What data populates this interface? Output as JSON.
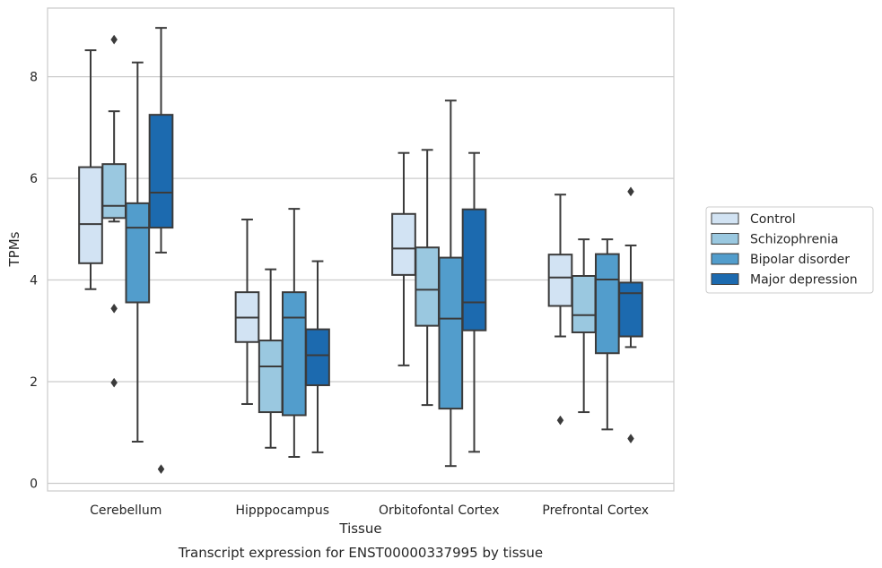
{
  "chart_data": {
    "type": "box",
    "title": "",
    "caption": "Transcript expression for ENST00000337995 by tissue",
    "xlabel": "Tissue",
    "ylabel": "TPMs",
    "ylim": [
      -0.15,
      9.35
    ],
    "yticks": [
      0,
      2,
      4,
      6,
      8
    ],
    "grid": "horizontal",
    "legend_position": "right",
    "categories": [
      "Cerebellum",
      "Hipppocampus",
      "Orbitofontal Cortex",
      "Prefrontal Cortex"
    ],
    "series": [
      {
        "name": "Control",
        "color": "#d2e3f3",
        "boxes": [
          {
            "whislo": 3.82,
            "q1": 4.33,
            "med": 5.1,
            "q3": 6.22,
            "whishi": 8.52,
            "fliers": []
          },
          {
            "whislo": 1.56,
            "q1": 2.78,
            "med": 3.26,
            "q3": 3.76,
            "whishi": 5.19,
            "fliers": []
          },
          {
            "whislo": 2.32,
            "q1": 4.1,
            "med": 4.62,
            "q3": 5.3,
            "whishi": 6.5,
            "fliers": []
          },
          {
            "whislo": 2.89,
            "q1": 3.49,
            "med": 4.05,
            "q3": 4.5,
            "whishi": 5.68,
            "fliers": [
              1.24
            ]
          }
        ]
      },
      {
        "name": "Schizophrenia",
        "color": "#9ac8e0",
        "boxes": [
          {
            "whislo": 5.15,
            "q1": 5.22,
            "med": 5.46,
            "q3": 6.28,
            "whishi": 7.32,
            "fliers": [
              8.73,
              3.44,
              1.98
            ]
          },
          {
            "whislo": 0.7,
            "q1": 1.4,
            "med": 2.3,
            "q3": 2.81,
            "whishi": 4.21,
            "fliers": []
          },
          {
            "whislo": 1.54,
            "q1": 3.1,
            "med": 3.81,
            "q3": 4.64,
            "whishi": 6.56,
            "fliers": []
          },
          {
            "whislo": 1.4,
            "q1": 2.97,
            "med": 3.31,
            "q3": 4.08,
            "whishi": 4.8,
            "fliers": []
          }
        ]
      },
      {
        "name": "Bipolar disorder",
        "color": "#529dcc",
        "boxes": [
          {
            "whislo": 0.82,
            "q1": 3.56,
            "med": 5.03,
            "q3": 5.51,
            "whishi": 8.28,
            "fliers": []
          },
          {
            "whislo": 0.52,
            "q1": 1.34,
            "med": 3.26,
            "q3": 3.76,
            "whishi": 5.4,
            "fliers": []
          },
          {
            "whislo": 0.34,
            "q1": 1.47,
            "med": 3.24,
            "q3": 4.44,
            "whishi": 7.53,
            "fliers": []
          },
          {
            "whislo": 1.06,
            "q1": 2.56,
            "med": 4.01,
            "q3": 4.51,
            "whishi": 4.8,
            "fliers": []
          }
        ]
      },
      {
        "name": "Major depression",
        "color": "#1c6aaf",
        "boxes": [
          {
            "whislo": 4.54,
            "q1": 5.03,
            "med": 5.72,
            "q3": 7.25,
            "whishi": 8.96,
            "fliers": [
              0.28
            ]
          },
          {
            "whislo": 0.61,
            "q1": 1.93,
            "med": 2.52,
            "q3": 3.03,
            "whishi": 4.37,
            "fliers": []
          },
          {
            "whislo": 0.62,
            "q1": 3.01,
            "med": 3.56,
            "q3": 5.39,
            "whishi": 6.5,
            "fliers": []
          },
          {
            "whislo": 2.68,
            "q1": 2.89,
            "med": 3.74,
            "q3": 3.95,
            "whishi": 4.68,
            "fliers": [
              5.74,
              0.88
            ]
          }
        ]
      }
    ]
  },
  "colors": {
    "edge": "#3b3b3b",
    "grid": "#cccccc",
    "axes_border": "#cccccc",
    "text": "#262626"
  }
}
